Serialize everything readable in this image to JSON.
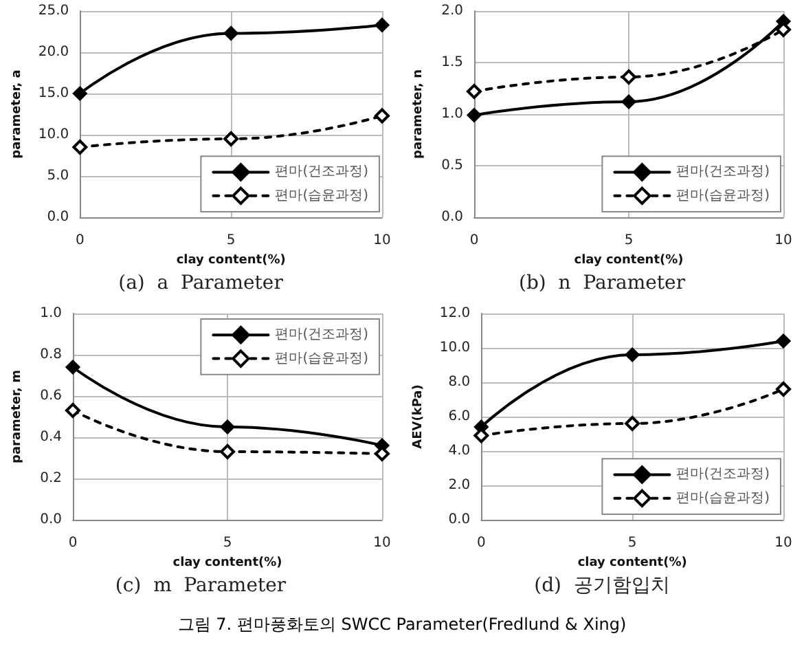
{
  "chart_data": [
    {
      "type": "line",
      "title": "(a)  a  Parameter",
      "xlabel": "clay content(%)",
      "ylabel": "parameter, a",
      "x": [
        0,
        5,
        10
      ],
      "xlim": [
        0,
        10
      ],
      "xticks": [
        0,
        5,
        10
      ],
      "ylim": [
        0,
        25
      ],
      "yticks": [
        {
          "value": 0,
          "label": "0.0"
        },
        {
          "value": 5,
          "label": "5.0"
        },
        {
          "value": 10,
          "label": "10.0"
        },
        {
          "value": 15,
          "label": "15.0"
        },
        {
          "value": 20,
          "label": "20.0"
        },
        {
          "value": 25,
          "label": "25.0"
        }
      ],
      "grid": true,
      "legend": "bottom right",
      "marker": "diamond",
      "series": [
        {
          "name": "편마(건조과정)",
          "color": "#000000",
          "line_style": "solid",
          "values": [
            15.0,
            22.3,
            23.3
          ]
        },
        {
          "name": "편마(습윤과정)",
          "color": "#000000",
          "line_style": "dashed",
          "values": [
            8.5,
            9.5,
            12.3
          ]
        }
      ]
    },
    {
      "type": "line",
      "title": "(b)  n  Parameter",
      "xlabel": "clay content(%)",
      "ylabel": "parameter, n",
      "x": [
        0,
        5,
        10
      ],
      "xlim": [
        0,
        10
      ],
      "xticks": [
        0,
        5,
        10
      ],
      "ylim": [
        0,
        2
      ],
      "yticks": [
        {
          "value": 0,
          "label": "0.0"
        },
        0.5,
        {
          "value": 1,
          "label": "1.0"
        },
        1.5,
        {
          "value": 2,
          "label": "2.0"
        }
      ],
      "grid": true,
      "legend": "bottom right",
      "marker": "diamond",
      "series": [
        {
          "name": "편마(건조과정)",
          "color": "#000000",
          "line_style": "solid",
          "values": [
            0.99,
            1.12,
            1.9
          ]
        },
        {
          "name": "편마(습윤과정)",
          "color": "#000000",
          "line_style": "dashed",
          "values": [
            1.22,
            1.36,
            1.82
          ]
        }
      ]
    },
    {
      "type": "line",
      "title": "(c)  m  Parameter",
      "xlabel": "clay content(%)",
      "ylabel": "parameter, m",
      "x": [
        0,
        5,
        10
      ],
      "xlim": [
        0,
        10
      ],
      "xticks": [
        0,
        5,
        10
      ],
      "ylim": [
        0,
        1
      ],
      "yticks": [
        {
          "value": 0,
          "label": "0.0"
        },
        0.2,
        0.4,
        0.6,
        0.8,
        {
          "value": 1,
          "label": "1.0"
        }
      ],
      "grid": true,
      "legend": "top right",
      "marker": "diamond",
      "series": [
        {
          "name": "편마(건조과정)",
          "color": "#000000",
          "line_style": "solid",
          "values": [
            0.74,
            0.45,
            0.36
          ]
        },
        {
          "name": "편마(습윤과정)",
          "color": "#000000",
          "line_style": "dashed",
          "values": [
            0.53,
            0.33,
            0.32
          ]
        }
      ]
    },
    {
      "type": "line",
      "title": "(d)  공기함입치",
      "xlabel": "clay content(%)",
      "ylabel": "AEV(kPa)",
      "x": [
        0,
        5,
        10
      ],
      "xlim": [
        0,
        10
      ],
      "xticks": [
        0,
        5,
        10
      ],
      "ylim": [
        0,
        12
      ],
      "yticks": [
        {
          "value": 0,
          "label": "0.0"
        },
        {
          "value": 2,
          "label": "2.0"
        },
        {
          "value": 4,
          "label": "4.0"
        },
        {
          "value": 6,
          "label": "6.0"
        },
        {
          "value": 8,
          "label": "8.0"
        },
        {
          "value": 10,
          "label": "10.0"
        },
        {
          "value": 12,
          "label": "12.0"
        }
      ],
      "grid": true,
      "legend": "bottom right",
      "marker": "diamond",
      "annotations": [
        "그림 7. 편마풍화토의 SWCC Parameter(Fredlund & Xing)"
      ],
      "series": [
        {
          "name": "편마(건조과정)",
          "color": "#000000",
          "line_style": "solid",
          "values": [
            5.4,
            9.6,
            10.4
          ]
        },
        {
          "name": "편마(습윤과정)",
          "color": "#000000",
          "line_style": "dashed",
          "values": [
            4.9,
            5.6,
            7.6
          ]
        }
      ]
    }
  ]
}
